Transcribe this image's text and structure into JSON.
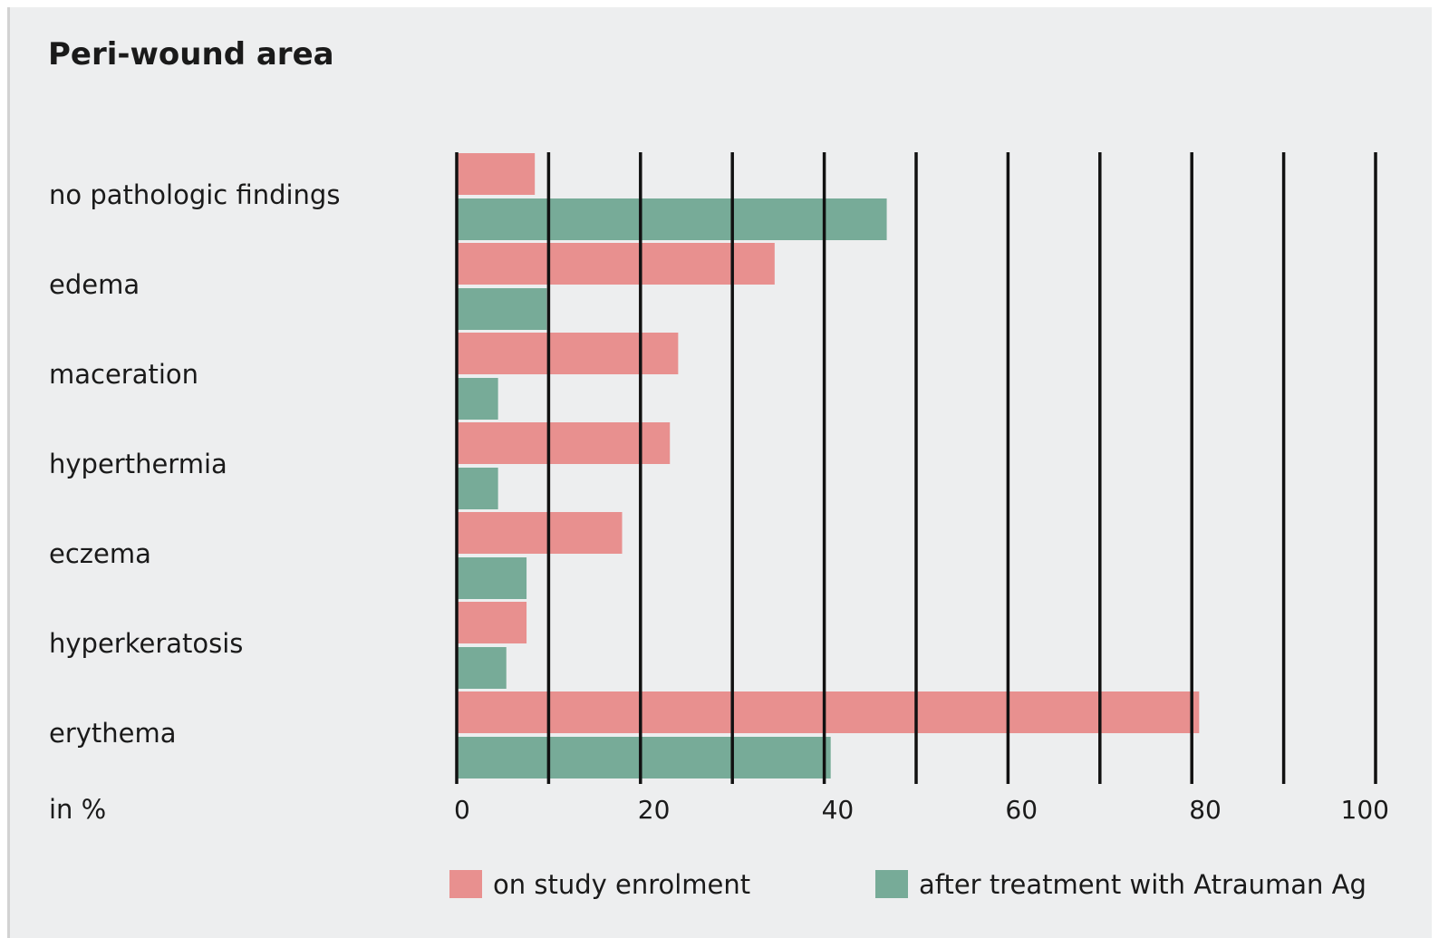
{
  "chart_data": {
    "type": "bar",
    "orientation": "horizontal",
    "title": "Peri-wound area",
    "xlabel": "in %",
    "ylabel": "",
    "categories": [
      "no pathologic findings",
      "edema",
      "maceration",
      "hyperthermia",
      "eczema",
      "hyperkeratosis",
      "erythema"
    ],
    "series": [
      {
        "name": "on study enrolment",
        "color": "#e8908f",
        "values": [
          8.5,
          34.6,
          24.1,
          23.2,
          18.0,
          7.6,
          80.8
        ]
      },
      {
        "name": "after treatment with Atrauman Ag",
        "color": "#77ab98",
        "values": [
          46.8,
          9.8,
          4.5,
          4.5,
          7.6,
          5.4,
          40.7
        ]
      }
    ],
    "xlim": [
      0,
      100
    ],
    "x_ticks": [
      0,
      20,
      40,
      60,
      80,
      100
    ],
    "gridlines": [
      0,
      10,
      20,
      30,
      40,
      50,
      60,
      70,
      80,
      90,
      100
    ],
    "grid": true,
    "legend_position": "bottom"
  }
}
